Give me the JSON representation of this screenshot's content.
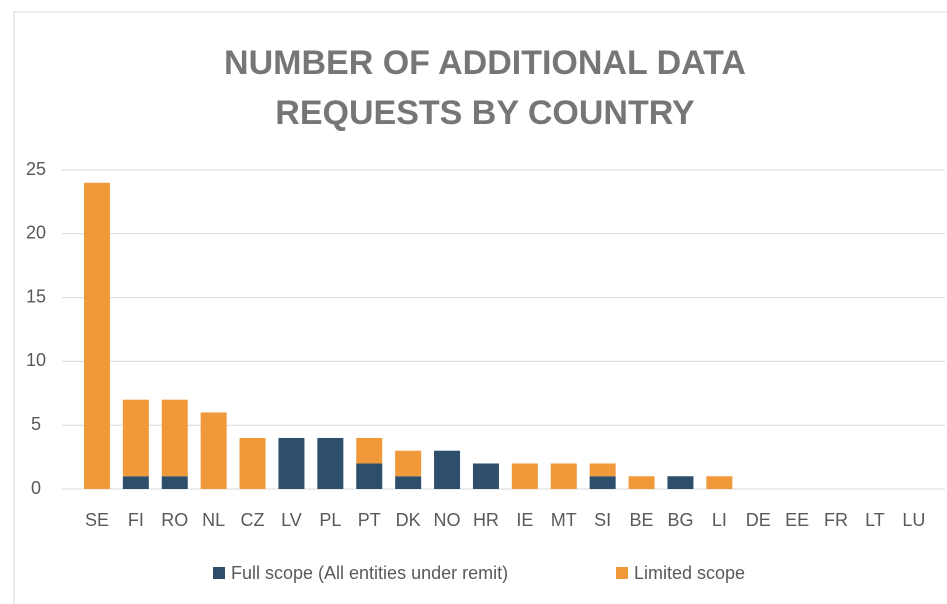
{
  "chart_data": {
    "type": "stacked_bar",
    "title": "NUMBER OF ADDITIONAL DATA REQUESTS BY COUNTRY",
    "categories": [
      "SE",
      "FI",
      "RO",
      "NL",
      "CZ",
      "LV",
      "PL",
      "PT",
      "DK",
      "NO",
      "HR",
      "IE",
      "MT",
      "SI",
      "BE",
      "BG",
      "LI",
      "DE",
      "EE",
      "FR",
      "LT",
      "LU"
    ],
    "series": [
      {
        "name": "Full scope (All entities under remit)",
        "color": "#2d4f6c",
        "values": [
          0,
          1,
          1,
          0,
          0,
          4,
          4,
          2,
          1,
          3,
          2,
          0,
          0,
          1,
          0,
          1,
          0,
          0,
          0,
          0,
          0,
          0
        ]
      },
      {
        "name": "Limited scope",
        "color": "#f0993b",
        "values": [
          24,
          6,
          6,
          6,
          4,
          0,
          0,
          2,
          2,
          0,
          0,
          2,
          2,
          1,
          1,
          0,
          1,
          0,
          0,
          0,
          0,
          0
        ]
      }
    ],
    "ylim": [
      0,
      25
    ],
    "yticks": [
      0,
      5,
      10,
      15,
      20,
      25
    ],
    "grid": true,
    "legend": "bottom"
  }
}
